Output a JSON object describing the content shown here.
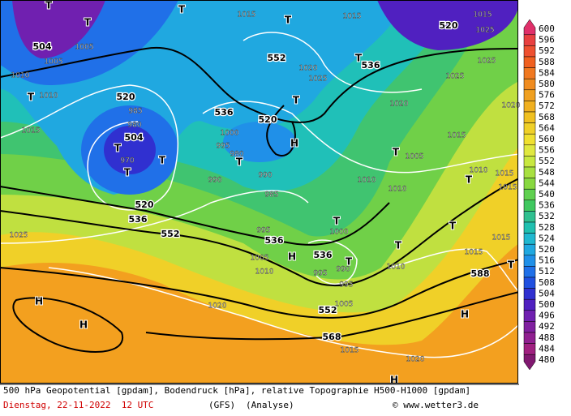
{
  "map": {
    "geopotential_labels": [
      504,
      552,
      536,
      520,
      536,
      520,
      520,
      504,
      520,
      536,
      552,
      536,
      536,
      588,
      552,
      568
    ],
    "pressure_labels": [
      1005,
      1005,
      1010,
      1010,
      1015,
      985,
      980,
      970,
      990,
      990,
      985,
      995,
      1025,
      1025,
      1020,
      1020,
      1015,
      1015,
      1015,
      1025,
      1025,
      1025,
      1015,
      1005,
      1010,
      1010,
      1000,
      990,
      995,
      995,
      1005,
      1010,
      1020,
      1005,
      1015,
      1020,
      1010,
      1015,
      1015,
      1010,
      1015,
      1015,
      1020,
      1000,
      995,
      980
    ],
    "markers": [
      "T",
      "T",
      "T",
      "T",
      "T",
      "T",
      "T",
      "T",
      "T",
      "T",
      "T",
      "T",
      "T",
      "T",
      "T",
      "T",
      "T",
      "T",
      "H",
      "H",
      "H",
      "H",
      "H",
      "H"
    ]
  },
  "colorbar": {
    "values": [
      600,
      596,
      592,
      588,
      584,
      580,
      576,
      572,
      568,
      564,
      560,
      556,
      552,
      548,
      544,
      540,
      536,
      532,
      528,
      524,
      520,
      516,
      512,
      508,
      504,
      500,
      496,
      492,
      488,
      484,
      480
    ],
    "colors": [
      "#e0306a",
      "#e84040",
      "#ee5030",
      "#f06020",
      "#f07820",
      "#f08c20",
      "#f0a020",
      "#f0b020",
      "#f0c020",
      "#f0d028",
      "#f0e030",
      "#e0e840",
      "#c8e840",
      "#a8e040",
      "#88d840",
      "#60d050",
      "#40c860",
      "#30c090",
      "#20c0b0",
      "#20b8d0",
      "#20a8e0",
      "#2090e8",
      "#2070e8",
      "#2050e0",
      "#3030d0",
      "#5020c0",
      "#7020b0",
      "#8020a0",
      "#902090",
      "#a02080",
      "#801870"
    ]
  },
  "footer": {
    "title": "500 hPa Geopotential [gpdam], Bodendruck [hPa], relative Topographie H500-H1000 [gpdam]",
    "date": "Dienstag, 22-11-2022  12 UTC",
    "model": "(GFS)",
    "run": "(Analyse)",
    "credit": "© www.wetter3.de"
  }
}
